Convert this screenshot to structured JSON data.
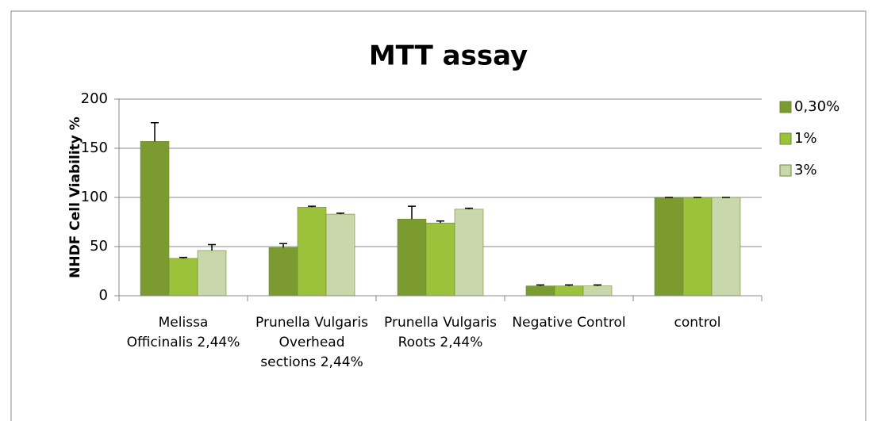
{
  "chart_data": {
    "type": "bar",
    "title": "MTT assay",
    "y_label": "NHDF Cell Viability %",
    "categories": [
      "Melissa Officinalis 2,44%",
      "Prunella Vulgaris Overhead sections 2,44%",
      "Prunella Vulgaris Roots 2,44%",
      "Negative Control",
      "control"
    ],
    "series": [
      {
        "name": "0,30%",
        "color": "#7b9a30",
        "values": [
          157,
          49,
          78,
          10,
          100
        ],
        "errors": [
          19,
          4,
          13,
          1,
          0
        ]
      },
      {
        "name": "1%",
        "color": "#9cc23c",
        "values": [
          38,
          90,
          74,
          10,
          100
        ],
        "errors": [
          1,
          1,
          2,
          1,
          0
        ]
      },
      {
        "name": "3%",
        "color": "#c9d8aa",
        "values": [
          46,
          83,
          88,
          10,
          100
        ],
        "errors": [
          6,
          1,
          1,
          1,
          0
        ]
      }
    ],
    "ylim": [
      0,
      200
    ],
    "yticks": [
      0,
      50,
      100,
      150,
      200
    ],
    "grid": true,
    "legend": "right"
  }
}
